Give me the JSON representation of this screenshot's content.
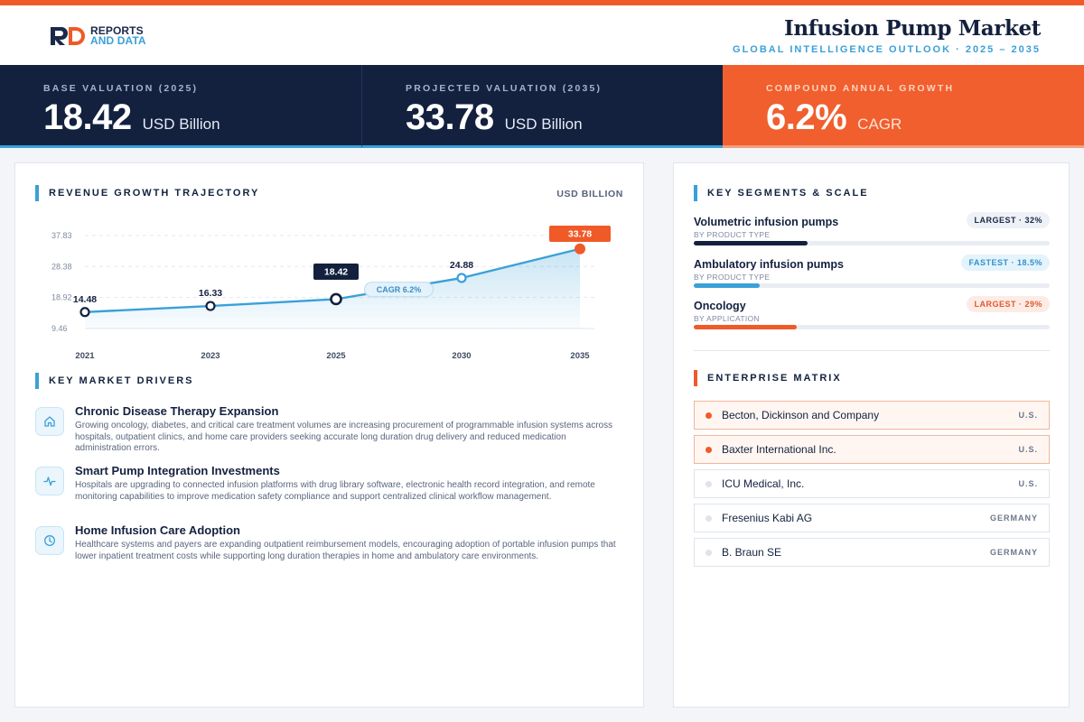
{
  "brand": {
    "line1": "REPORTS",
    "line2": "AND DATA"
  },
  "header": {
    "title": "Infusion Pump Market",
    "subtitle": "GLOBAL INTELLIGENCE OUTLOOK  ·  2025 – 2035"
  },
  "kpis": [
    {
      "label": "BASE VALUATION (2025)",
      "value": "18.42",
      "unit": "USD Billion"
    },
    {
      "label": "PROJECTED VALUATION (2035)",
      "value": "33.78",
      "unit": "USD Billion"
    },
    {
      "label": "COMPOUND ANNUAL GROWTH",
      "value": "6.2%",
      "unit": "CAGR"
    }
  ],
  "chart_section": {
    "title": "REVENUE GROWTH TRAJECTORY",
    "unit": "USD BILLION"
  },
  "chart_data": {
    "type": "area",
    "categories": [
      "2021",
      "2023",
      "2025",
      "2030",
      "2035"
    ],
    "values": [
      14.48,
      16.33,
      18.42,
      24.88,
      33.78
    ],
    "value_labels": [
      "14.48",
      "16.33",
      "18.42",
      "24.88",
      "33.78"
    ],
    "y_ticks": [
      37.83,
      28.38,
      18.92,
      9.46
    ],
    "y_tick_labels": [
      "37.83",
      "28.38",
      "18.92",
      "9.46"
    ],
    "ylim": [
      9.46,
      37.83
    ],
    "annotation": "CAGR 6.2%",
    "highlight_points": [
      "2025",
      "2035"
    ],
    "grid": true,
    "colors": {
      "line": "#3aa0d8",
      "base": "#13213f",
      "end": "#f05a28"
    }
  },
  "drivers_section": {
    "title": "KEY MARKET DRIVERS"
  },
  "drivers": [
    {
      "icon": "home-icon",
      "title": "Chronic Disease Therapy Expansion",
      "text": "Growing oncology, diabetes, and critical care treatment volumes are increasing procurement of programmable infusion systems across hospitals, outpatient clinics, and home care providers seeking accurate long duration drug delivery and reduced medication administration errors."
    },
    {
      "icon": "pulse-icon",
      "title": "Smart Pump Integration Investments",
      "text": "Hospitals are upgrading to connected infusion platforms with drug library software, electronic health record integration, and remote monitoring capabilities to improve medication safety compliance and support centralized clinical workflow management."
    },
    {
      "icon": "clock-icon",
      "title": "Home Infusion Care Adoption",
      "text": "Healthcare systems and payers are expanding outpatient reimbursement models, encouraging adoption of portable infusion pumps that lower inpatient treatment costs while supporting long duration therapies in home and ambulatory care environments."
    }
  ],
  "segments_section": {
    "title": "KEY SEGMENTS & SCALE"
  },
  "segments": [
    {
      "name": "Volumetric infusion pumps",
      "category": "BY PRODUCT TYPE",
      "badge": "LARGEST · 32%",
      "share": 0.32,
      "color": "#13213f",
      "badge_style": "navy"
    },
    {
      "name": "Ambulatory infusion pumps",
      "category": "BY PRODUCT TYPE",
      "badge": "FASTEST · 18.5%",
      "share": 0.185,
      "color": "#3aa0d8",
      "badge_style": "blue"
    },
    {
      "name": "Oncology",
      "category": "BY APPLICATION",
      "badge": "LARGEST · 29%",
      "share": 0.29,
      "color": "#f05a28",
      "badge_style": "orange"
    }
  ],
  "enterprise_section": {
    "title": "ENTERPRISE MATRIX"
  },
  "enterprises": [
    {
      "name": "Becton, Dickinson and Company",
      "country": "U.S.",
      "highlight": true
    },
    {
      "name": "Baxter International Inc.",
      "country": "U.S.",
      "highlight": true
    },
    {
      "name": "ICU Medical, Inc.",
      "country": "U.S.",
      "highlight": false
    },
    {
      "name": "Fresenius Kabi AG",
      "country": "GERMANY",
      "highlight": false
    },
    {
      "name": "B. Braun SE",
      "country": "GERMANY",
      "highlight": false
    }
  ]
}
